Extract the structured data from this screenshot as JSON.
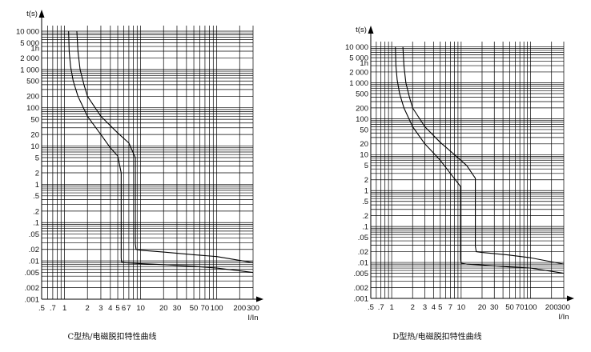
{
  "chart_data": [
    {
      "type": "line",
      "title": "C型热/电磁脱扣特性曲线",
      "ylabel": "t(s)",
      "xlabel": "I/In",
      "x_scale": "log",
      "y_scale": "log",
      "xlim": [
        0.5,
        300
      ],
      "ylim": [
        0.001,
        14000
      ],
      "grid": true,
      "x_tick_labels": [
        ".5",
        ".7",
        "1",
        "2",
        "3",
        "4",
        "5",
        "6",
        "7",
        "10",
        "20",
        "30",
        "50",
        "70",
        "100",
        "200",
        "300"
      ],
      "x_tick_values": [
        0.5,
        0.7,
        1,
        2,
        3,
        4,
        5,
        6,
        7,
        10,
        20,
        30,
        50,
        70,
        100,
        200,
        300
      ],
      "y_tick_labels": [
        "10 000",
        "5 000",
        "1h",
        "2 000",
        "1 000",
        "500",
        "200",
        "100",
        "50",
        "20",
        "10",
        "5",
        "2",
        "1",
        ".5",
        ".2",
        ".1",
        ".05",
        ".02",
        ".01",
        ".005",
        ".002",
        ".001"
      ],
      "y_tick_values": [
        10000,
        5000,
        3600,
        2000,
        1000,
        500,
        200,
        100,
        50,
        20,
        10,
        5,
        2,
        1,
        0.5,
        0.2,
        0.1,
        0.05,
        0.02,
        0.01,
        0.005,
        0.002,
        0.001
      ],
      "series": [
        {
          "x": [
            1.13,
            1.15,
            1.2,
            1.3,
            1.5,
            2,
            3,
            4,
            5,
            5.55,
            5.55,
            5.6,
            6,
            10,
            20,
            50,
            100,
            300
          ],
          "y": [
            10000,
            3000,
            1200,
            500,
            200,
            60,
            20,
            9,
            5.5,
            2,
            0.012,
            0.0095,
            0.009,
            0.0085,
            0.008,
            0.0072,
            0.0065,
            0.005
          ]
        },
        {
          "x": [
            1.45,
            1.5,
            1.6,
            1.8,
            2,
            3,
            5,
            7,
            8.5,
            8.5,
            8.7,
            10,
            20,
            50,
            100,
            300
          ],
          "y": [
            10000,
            3000,
            1000,
            400,
            200,
            60,
            22,
            12,
            5,
            0.028,
            0.02,
            0.019,
            0.017,
            0.0145,
            0.013,
            0.009
          ]
        }
      ]
    },
    {
      "type": "line",
      "title": "D型热/电磁脱扣特性曲线",
      "ylabel": "t(s)",
      "xlabel": "I/In",
      "x_scale": "log",
      "y_scale": "log",
      "xlim": [
        0.5,
        300
      ],
      "ylim": [
        0.001,
        14000
      ],
      "grid": true,
      "x_tick_labels": [
        ".5",
        ".7",
        "1",
        "2",
        "3",
        "4",
        "5",
        "7",
        "10",
        "20",
        "30",
        "50",
        "70",
        "100",
        "200",
        "300"
      ],
      "x_tick_values": [
        0.5,
        0.7,
        1,
        2,
        3,
        4,
        5,
        7,
        10,
        20,
        30,
        50,
        70,
        100,
        200,
        300
      ],
      "y_tick_labels": [
        "10 000",
        "5 000",
        "1h",
        "2 000",
        "1 000",
        "500",
        "200",
        "100",
        "50",
        "20",
        "10",
        "5",
        "2",
        "1",
        ".5",
        ".2",
        ".1",
        ".05",
        ".02",
        ".01",
        ".005",
        ".002",
        ".001"
      ],
      "y_tick_values": [
        10000,
        5000,
        3600,
        2000,
        1000,
        500,
        200,
        100,
        50,
        20,
        10,
        5,
        2,
        1,
        0.5,
        0.2,
        0.1,
        0.05,
        0.02,
        0.01,
        0.005,
        0.002,
        0.001
      ],
      "series": [
        {
          "x": [
            1.13,
            1.15,
            1.2,
            1.3,
            1.5,
            2,
            3,
            5,
            7,
            9.8,
            9.8,
            10,
            12,
            20,
            50,
            100,
            300
          ],
          "y": [
            10000,
            3000,
            1200,
            500,
            200,
            60,
            20,
            7,
            3,
            1.3,
            0.012,
            0.0095,
            0.009,
            0.0085,
            0.0075,
            0.007,
            0.005
          ]
        },
        {
          "x": [
            1.45,
            1.5,
            1.6,
            1.8,
            2,
            3,
            5,
            8,
            12,
            16,
            16,
            16.5,
            20,
            50,
            100,
            300
          ],
          "y": [
            10000,
            3000,
            1000,
            400,
            200,
            60,
            22,
            10,
            5,
            2.2,
            0.028,
            0.02,
            0.019,
            0.016,
            0.0135,
            0.009
          ]
        }
      ]
    }
  ]
}
